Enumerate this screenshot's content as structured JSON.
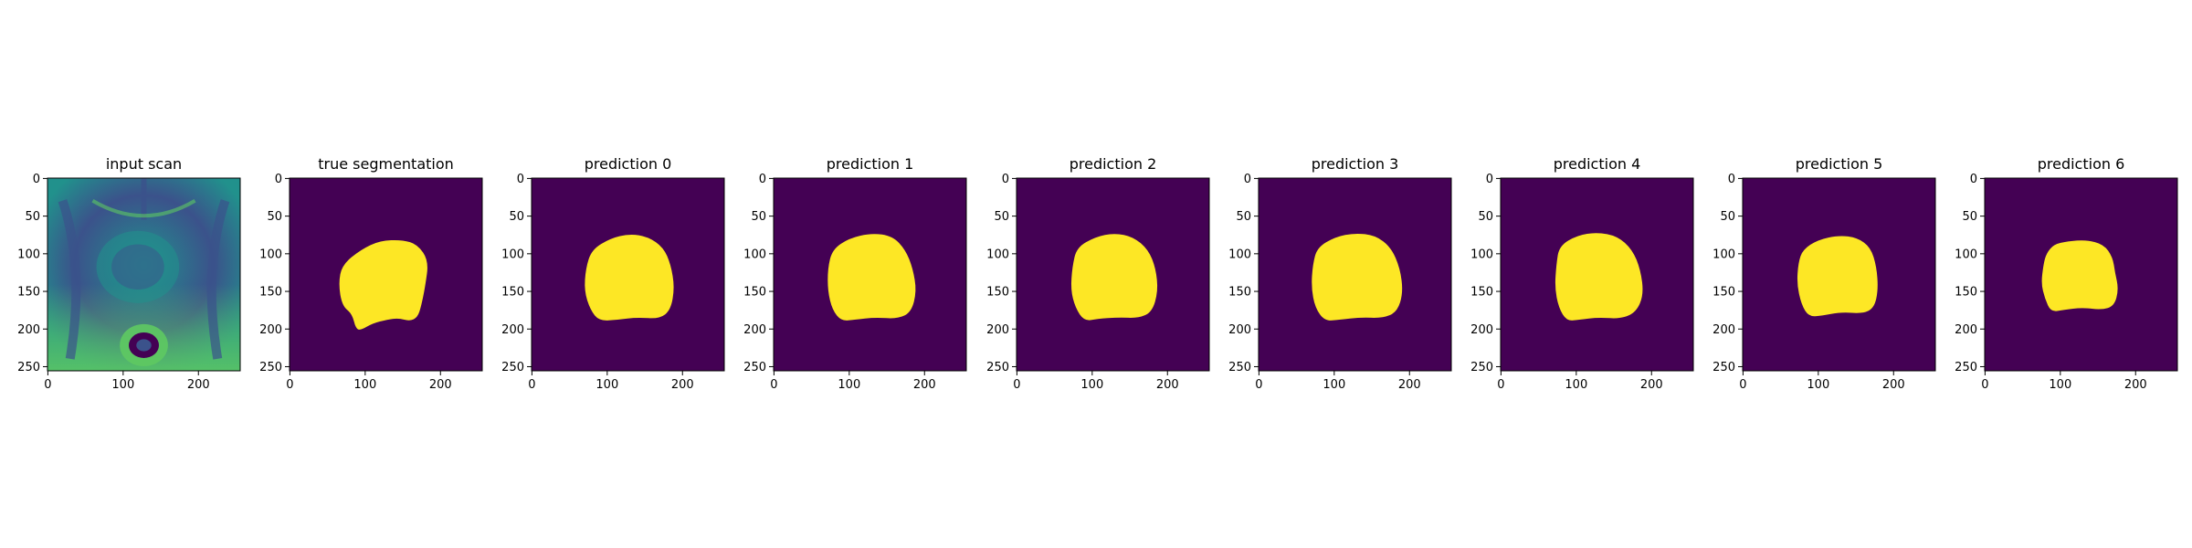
{
  "panels": [
    {
      "title": "input scan",
      "kind": "scan"
    },
    {
      "title": "true segmentation",
      "kind": "mask"
    },
    {
      "title": "prediction 0",
      "kind": "mask"
    },
    {
      "title": "prediction 1",
      "kind": "mask"
    },
    {
      "title": "prediction 2",
      "kind": "mask"
    },
    {
      "title": "prediction 3",
      "kind": "mask"
    },
    {
      "title": "prediction 4",
      "kind": "mask"
    },
    {
      "title": "prediction 5",
      "kind": "mask"
    },
    {
      "title": "prediction 6",
      "kind": "mask"
    }
  ],
  "axes": {
    "x_ticks": [
      "0",
      "100",
      "200"
    ],
    "y_ticks": [
      "0",
      "50",
      "100",
      "150",
      "200",
      "250"
    ]
  },
  "colors": {
    "background": "#440154",
    "foreground": "#fde725",
    "scan_dark": "#3b528b",
    "scan_mid": "#21918c",
    "scan_bright": "#5ec962"
  }
}
